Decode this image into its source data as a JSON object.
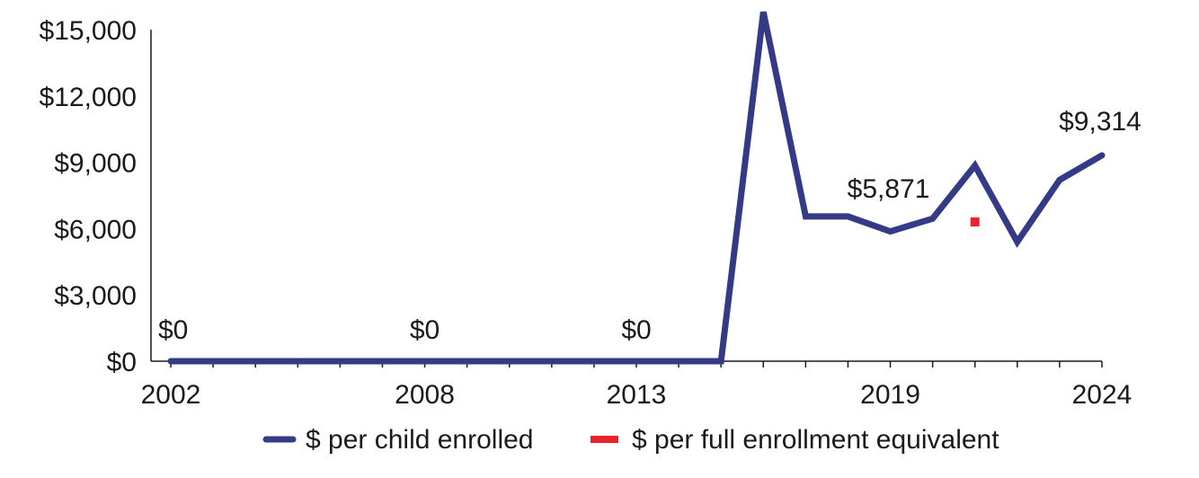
{
  "chart_data": {
    "type": "line",
    "title": "",
    "xlabel": "",
    "ylabel": "",
    "x": [
      2002,
      2003,
      2004,
      2005,
      2006,
      2007,
      2008,
      2009,
      2010,
      2011,
      2012,
      2013,
      2014,
      2015,
      2016,
      2017,
      2018,
      2019,
      2020,
      2021,
      2022,
      2023,
      2024
    ],
    "x_tick_labels": [
      "2002",
      "2008",
      "2013",
      "2019",
      "2024"
    ],
    "y_tick_labels": [
      "$0",
      "$3,000",
      "$6,000",
      "$9,000",
      "$12,000",
      "$15,000"
    ],
    "ylim": [
      0,
      15000
    ],
    "y_ticks": [
      0,
      3000,
      6000,
      9000,
      12000,
      15000
    ],
    "grid": false,
    "legend_position": "bottom",
    "series": [
      {
        "name": "$ per child enrolled",
        "color": "#343a86",
        "style": "line",
        "values": [
          0,
          0,
          0,
          0,
          0,
          0,
          0,
          0,
          0,
          0,
          0,
          0,
          0,
          0,
          15800,
          6550,
          6550,
          5871,
          6450,
          8850,
          5400,
          8200,
          9314
        ]
      },
      {
        "name": "$ per full enrollment equivalent",
        "color": "#e8232b",
        "style": "marker",
        "points": [
          {
            "x": 2021,
            "y": 6300
          }
        ]
      }
    ],
    "annotations": [
      {
        "x": 2002,
        "y": 0,
        "text": "$0"
      },
      {
        "x": 2008,
        "y": 0,
        "text": "$0"
      },
      {
        "x": 2013,
        "y": 0,
        "text": "$0"
      },
      {
        "x": 2019,
        "y": 5871,
        "text": "$5,871"
      },
      {
        "x": 2024,
        "y": 9314,
        "text": "$9,314"
      }
    ]
  }
}
